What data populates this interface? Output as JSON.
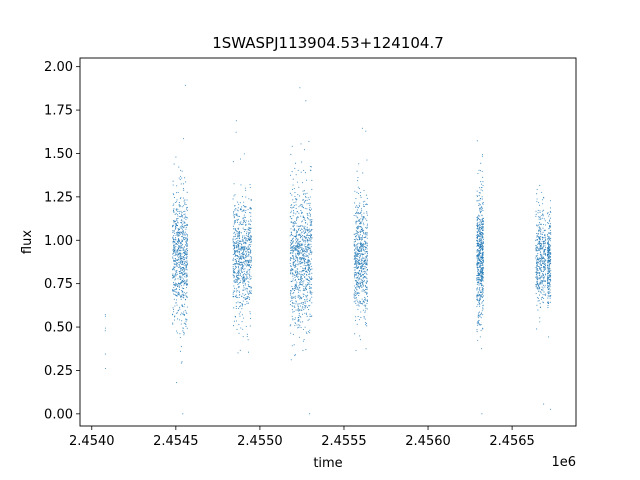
{
  "chart_data": {
    "type": "scatter",
    "title": "1SWASPJ113904.53+124104.7",
    "xlabel": "time",
    "ylabel": "flux",
    "x_offset_label": "1e6",
    "x_tick_labels": [
      "2.4540",
      "2.4545",
      "2.4550",
      "2.4555",
      "2.4560",
      "2.4565"
    ],
    "x_ticks": [
      2454000,
      2454500,
      2455000,
      2455500,
      2456000,
      2456500
    ],
    "y_ticks": [
      0.0,
      0.25,
      0.5,
      0.75,
      1.0,
      1.25,
      1.5,
      1.75,
      2.0
    ],
    "y_tick_labels": [
      "0.00",
      "0.25",
      "0.50",
      "0.75",
      "1.00",
      "1.25",
      "1.50",
      "1.75",
      "2.00"
    ],
    "xlim": [
      2453930,
      2456880
    ],
    "ylim": [
      -0.07,
      2.05
    ],
    "grid": false,
    "marker_color": "#1f77b4",
    "seasons": [
      {
        "x_range": [
          2454080,
          2454082
        ],
        "center": 0.5,
        "spread": 0.15,
        "n": 6
      },
      {
        "x_range": [
          2454480,
          2454570
        ],
        "center": 0.9,
        "spread": 0.18,
        "n": 700
      },
      {
        "x_range": [
          2454840,
          2454950
        ],
        "center": 0.9,
        "spread": 0.17,
        "n": 700
      },
      {
        "x_range": [
          2455180,
          2455310
        ],
        "center": 0.9,
        "spread": 0.2,
        "n": 900
      },
      {
        "x_range": [
          2455560,
          2455640
        ],
        "center": 0.9,
        "spread": 0.17,
        "n": 600
      },
      {
        "x_range": [
          2456290,
          2456330
        ],
        "center": 0.9,
        "spread": 0.18,
        "n": 600
      },
      {
        "x_range": [
          2456640,
          2456700
        ],
        "center": 0.9,
        "spread": 0.14,
        "n": 400
      },
      {
        "x_range": [
          2456710,
          2456730
        ],
        "center": 0.9,
        "spread": 0.13,
        "n": 250
      }
    ]
  }
}
